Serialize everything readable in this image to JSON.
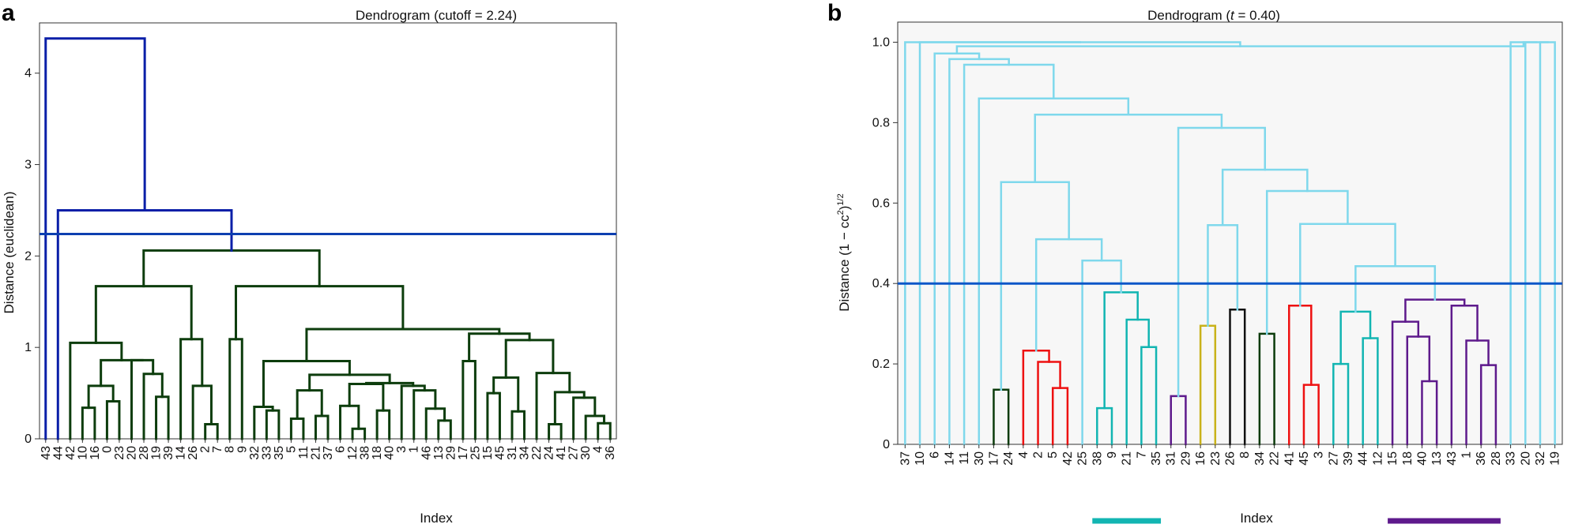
{
  "chart_data": [
    {
      "type": "dendrogram",
      "panel": "a",
      "title": "Dendrogram (cutoff = 2.24)",
      "xlabel": "Index",
      "ylabel": "Distance (euclidean)",
      "ylim": [
        0,
        4.55
      ],
      "yticks": [
        0,
        1,
        2,
        3,
        4
      ],
      "cutoff": 2.24,
      "cutoff_color": "#0d3fb0",
      "colors": {
        "above": "#0a1fa8",
        "cluster": "#0d3d0d"
      },
      "leaves": [
        "43",
        "44",
        "42",
        "10",
        "16",
        "0",
        "23",
        "20",
        "28",
        "19",
        "39",
        "14",
        "26",
        "2",
        "7",
        "8",
        "9",
        "32",
        "33",
        "35",
        "5",
        "11",
        "21",
        "37",
        "6",
        "12",
        "38",
        "18",
        "40",
        "3",
        "1",
        "46",
        "13",
        "29",
        "17",
        "25",
        "15",
        "45",
        "31",
        "34",
        "22",
        "24",
        "41",
        "27",
        "30",
        "4",
        "36"
      ],
      "nodes": [
        {
          "id": "A1",
          "c": [
            "13",
            "29"
          ],
          "h": 0.2
        },
        {
          "id": "A2",
          "c": [
            "46",
            "A1"
          ],
          "h": 0.33
        },
        {
          "id": "A3",
          "c": [
            "1",
            "A2"
          ],
          "h": 0.53
        },
        {
          "id": "A4",
          "c": [
            "3",
            "A3"
          ],
          "h": 0.58
        },
        {
          "id": "A5",
          "c": [
            "12",
            "38"
          ],
          "h": 0.11
        },
        {
          "id": "A6",
          "c": [
            "6",
            "A5"
          ],
          "h": 0.36
        },
        {
          "id": "A7",
          "c": [
            "18",
            "40"
          ],
          "h": 0.31
        },
        {
          "id": "A8",
          "c": [
            "A6",
            "A7"
          ],
          "h": 0.6
        },
        {
          "id": "A9",
          "c": [
            "A8",
            "A4"
          ],
          "h": 0.61
        },
        {
          "id": "A10",
          "c": [
            "21",
            "37"
          ],
          "h": 0.25
        },
        {
          "id": "A11",
          "c": [
            "5",
            "11"
          ],
          "h": 0.22
        },
        {
          "id": "A12",
          "c": [
            "A11",
            "A10"
          ],
          "h": 0.53
        },
        {
          "id": "A13",
          "c": [
            "A12",
            "A9"
          ],
          "h": 0.7
        },
        {
          "id": "A14",
          "c": [
            "33",
            "35"
          ],
          "h": 0.31
        },
        {
          "id": "A15",
          "c": [
            "32",
            "A14"
          ],
          "h": 0.35
        },
        {
          "id": "A16",
          "c": [
            "A15",
            "A13"
          ],
          "h": 0.85
        },
        {
          "id": "A17",
          "c": [
            "4",
            "36"
          ],
          "h": 0.17
        },
        {
          "id": "A18",
          "c": [
            "30",
            "A17"
          ],
          "h": 0.25
        },
        {
          "id": "A19",
          "c": [
            "27",
            "A18"
          ],
          "h": 0.45
        },
        {
          "id": "A20",
          "c": [
            "24",
            "41"
          ],
          "h": 0.16
        },
        {
          "id": "A21",
          "c": [
            "A20",
            "A19"
          ],
          "h": 0.51
        },
        {
          "id": "A22",
          "c": [
            "22",
            "A21"
          ],
          "h": 0.72
        },
        {
          "id": "A23",
          "c": [
            "31",
            "34"
          ],
          "h": 0.3
        },
        {
          "id": "A24",
          "c": [
            "15",
            "45"
          ],
          "h": 0.5
        },
        {
          "id": "A25",
          "c": [
            "A24",
            "A23"
          ],
          "h": 0.67
        },
        {
          "id": "A26",
          "c": [
            "A25",
            "A22"
          ],
          "h": 1.08
        },
        {
          "id": "A27",
          "c": [
            "17",
            "25"
          ],
          "h": 0.85
        },
        {
          "id": "A28",
          "c": [
            "A27",
            "A26"
          ],
          "h": 1.15
        },
        {
          "id": "A29",
          "c": [
            "A16",
            "A28"
          ],
          "h": 1.2
        },
        {
          "id": "A30",
          "c": [
            "8",
            "9"
          ],
          "h": 1.09
        },
        {
          "id": "A31",
          "c": [
            "A30",
            "A29"
          ],
          "h": 1.67
        },
        {
          "id": "A32",
          "c": [
            "2",
            "7"
          ],
          "h": 0.16
        },
        {
          "id": "A33",
          "c": [
            "26",
            "A32"
          ],
          "h": 0.58
        },
        {
          "id": "A34",
          "c": [
            "14",
            "A33"
          ],
          "h": 1.09
        },
        {
          "id": "A35",
          "c": [
            "19",
            "39"
          ],
          "h": 0.46
        },
        {
          "id": "A36",
          "c": [
            "28",
            "A35"
          ],
          "h": 0.71
        },
        {
          "id": "A37",
          "c": [
            "20",
            "A36"
          ],
          "h": 0.86
        },
        {
          "id": "A38",
          "c": [
            "0",
            "23"
          ],
          "h": 0.41
        },
        {
          "id": "A39",
          "c": [
            "10",
            "16"
          ],
          "h": 0.34
        },
        {
          "id": "A40",
          "c": [
            "A39",
            "A38"
          ],
          "h": 0.58
        },
        {
          "id": "A41",
          "c": [
            "A40",
            "A37"
          ],
          "h": 0.86
        },
        {
          "id": "A42",
          "c": [
            "42",
            "A41"
          ],
          "h": 1.05
        },
        {
          "id": "A43",
          "c": [
            "A42",
            "A34"
          ],
          "h": 1.67
        },
        {
          "id": "A44",
          "c": [
            "A43",
            "A31"
          ],
          "h": 2.06
        },
        {
          "id": "A45",
          "c": [
            "44",
            "A44"
          ],
          "h": 2.5
        },
        {
          "id": "A46",
          "c": [
            "43",
            "A45"
          ],
          "h": 4.38
        }
      ]
    },
    {
      "type": "dendrogram",
      "panel": "b",
      "title_prefix": "Dendrogram (",
      "title_var": "t",
      "title_suffix": " = 0.40)",
      "xlabel": "Index",
      "ylabel": "Distance (1 − cc",
      "ylabel_sup2": "2",
      "ylabel_close": ")",
      "ylabel_sup12": "1/2",
      "ylim": [
        0,
        1.05
      ],
      "yticks": [
        "0",
        "0.2",
        "0.4",
        "0.6",
        "0.8",
        "1.0"
      ],
      "cutoff": 0.4,
      "cutoff_color": "#0d56c8",
      "colors": {
        "base": "#7fd8ec",
        "darkgreen": "#0b3b0b",
        "red": "#ee1111",
        "teal": "#12b5b2",
        "purple": "#5e1a8c",
        "gold": "#c9b21a",
        "black": "#111111"
      },
      "leaves": [
        "37",
        "10",
        "6",
        "14",
        "11",
        "30",
        "17",
        "24",
        "4",
        "2",
        "5",
        "42",
        "25",
        "38",
        "9",
        "21",
        "7",
        "35",
        "31",
        "29",
        "16",
        "23",
        "26",
        "8",
        "34",
        "22",
        "41",
        "45",
        "3",
        "27",
        "39",
        "44",
        "12",
        "15",
        "18",
        "40",
        "13",
        "43",
        "1",
        "36",
        "28",
        "33",
        "20",
        "32",
        "19"
      ],
      "leaf_bars": [
        {
          "from": "38",
          "to": "35",
          "color": "#12b5b2"
        },
        {
          "from": "15",
          "to": "28",
          "color": "#5e1a8c"
        }
      ],
      "nodes": [
        {
          "id": "B1",
          "c": [
            "17",
            "24"
          ],
          "h": 0.136,
          "col": "darkgreen"
        },
        {
          "id": "B2",
          "c": [
            "5",
            "42"
          ],
          "h": 0.14,
          "col": "red"
        },
        {
          "id": "B3",
          "c": [
            "2",
            "B2"
          ],
          "h": 0.205,
          "col": "red"
        },
        {
          "id": "B4",
          "c": [
            "4",
            "B3"
          ],
          "h": 0.233,
          "col": "red"
        },
        {
          "id": "B5",
          "c": [
            "38",
            "9"
          ],
          "h": 0.09,
          "col": "teal"
        },
        {
          "id": "B6",
          "c": [
            "35",
            "7"
          ],
          "h": 0.242,
          "col": "teal"
        },
        {
          "id": "B7",
          "c": [
            "21",
            "B6"
          ],
          "h": 0.31,
          "col": "teal"
        },
        {
          "id": "B8",
          "c": [
            "B5",
            "B7"
          ],
          "h": 0.378,
          "col": "teal"
        },
        {
          "id": "B9",
          "c": [
            "31",
            "29"
          ],
          "h": 0.12,
          "col": "purple"
        },
        {
          "id": "B10",
          "c": [
            "16",
            "23"
          ],
          "h": 0.295,
          "col": "gold"
        },
        {
          "id": "B11",
          "c": [
            "26",
            "8"
          ],
          "h": 0.335,
          "col": "black"
        },
        {
          "id": "B12",
          "c": [
            "34",
            "22"
          ],
          "h": 0.275,
          "col": "darkgreen"
        },
        {
          "id": "B13",
          "c": [
            "45",
            "3"
          ],
          "h": 0.148,
          "col": "red"
        },
        {
          "id": "B14",
          "c": [
            "41",
            "B13"
          ],
          "h": 0.345,
          "col": "red"
        },
        {
          "id": "B15",
          "c": [
            "27",
            "39"
          ],
          "h": 0.2,
          "col": "teal"
        },
        {
          "id": "B16",
          "c": [
            "44",
            "12"
          ],
          "h": 0.264,
          "col": "teal"
        },
        {
          "id": "B17",
          "c": [
            "B15",
            "B16"
          ],
          "h": 0.33,
          "col": "teal"
        },
        {
          "id": "B18",
          "c": [
            "40",
            "13"
          ],
          "h": 0.157,
          "col": "purple"
        },
        {
          "id": "B19",
          "c": [
            "18",
            "B18"
          ],
          "h": 0.268,
          "col": "purple"
        },
        {
          "id": "B20",
          "c": [
            "15",
            "B19"
          ],
          "h": 0.305,
          "col": "purple"
        },
        {
          "id": "B21",
          "c": [
            "36",
            "28"
          ],
          "h": 0.197,
          "col": "purple"
        },
        {
          "id": "B22",
          "c": [
            "1",
            "B21"
          ],
          "h": 0.258,
          "col": "purple"
        },
        {
          "id": "B23",
          "c": [
            "43",
            "B22"
          ],
          "h": 0.345,
          "col": "purple"
        },
        {
          "id": "B24",
          "c": [
            "B20",
            "B23"
          ],
          "h": 0.36,
          "col": "purple"
        },
        {
          "id": "B25",
          "c": [
            "25",
            "B8"
          ],
          "h": 0.457,
          "col": "base"
        },
        {
          "id": "B26",
          "c": [
            "B4",
            "B25"
          ],
          "h": 0.51,
          "col": "base"
        },
        {
          "id": "B27",
          "c": [
            "B1",
            "B26"
          ],
          "h": 0.652,
          "col": "base"
        },
        {
          "id": "B28",
          "c": [
            "B10",
            "B11"
          ],
          "h": 0.545,
          "col": "base"
        },
        {
          "id": "B29",
          "c": [
            "B17",
            "B24"
          ],
          "h": 0.443,
          "col": "base"
        },
        {
          "id": "B30",
          "c": [
            "B14",
            "B29"
          ],
          "h": 0.548,
          "col": "base"
        },
        {
          "id": "B31",
          "c": [
            "B12",
            "B30"
          ],
          "h": 0.63,
          "col": "base"
        },
        {
          "id": "B32",
          "c": [
            "B28",
            "B31"
          ],
          "h": 0.683,
          "col": "base"
        },
        {
          "id": "B33",
          "c": [
            "B9",
            "B32"
          ],
          "h": 0.787,
          "col": "base"
        },
        {
          "id": "B34",
          "c": [
            "B27",
            "B33"
          ],
          "h": 0.82,
          "col": "base"
        },
        {
          "id": "B35",
          "c": [
            "30",
            "B34"
          ],
          "h": 0.86,
          "col": "base"
        },
        {
          "id": "B36",
          "c": [
            "11",
            "B35"
          ],
          "h": 0.944,
          "col": "base"
        },
        {
          "id": "B37",
          "c": [
            "14",
            "B36"
          ],
          "h": 0.958,
          "col": "base"
        },
        {
          "id": "B38",
          "c": [
            "6",
            "B37"
          ],
          "h": 0.972,
          "col": "base"
        },
        {
          "id": "B39",
          "c": [
            "32",
            "19"
          ],
          "h": 1.0,
          "col": "base"
        },
        {
          "id": "B40",
          "c": [
            "20",
            "B39"
          ],
          "h": 1.0,
          "col": "base"
        },
        {
          "id": "B41",
          "c": [
            "33",
            "B40"
          ],
          "h": 1.0,
          "col": "base"
        },
        {
          "id": "B42",
          "c": [
            "B38",
            "B41"
          ],
          "h": 0.99,
          "col": "base"
        },
        {
          "id": "B43",
          "c": [
            "10",
            "B42"
          ],
          "h": 1.0,
          "col": "base"
        },
        {
          "id": "B44",
          "c": [
            "37",
            "B43"
          ],
          "h": 1.0,
          "col": "base"
        }
      ]
    }
  ]
}
